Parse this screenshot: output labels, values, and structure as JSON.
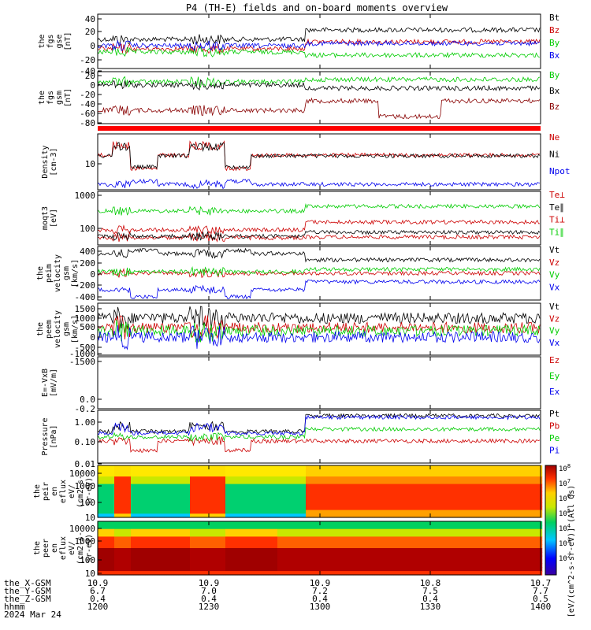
{
  "chart_data": {
    "type": "line",
    "title": "P4 (TH-E) fields and on-board moments overview",
    "panels": [
      {
        "id": "fgs_gse",
        "ylabel": [
          "the",
          "fgs",
          "gse",
          "[nT]"
        ],
        "yticks": [
          "40",
          "20",
          "0",
          "-20",
          "-40"
        ],
        "legend": [
          {
            "name": "Bt",
            "color": "#000000"
          },
          {
            "name": "Bz",
            "color": "#cc0000"
          },
          {
            "name": "By",
            "color": "#00cc00"
          },
          {
            "name": "Bx",
            "color": "#0000ee"
          }
        ]
      },
      {
        "id": "fgs_gsm",
        "ylabel": [
          "the",
          "fgs",
          "gsm",
          "[nT]"
        ],
        "yticks": [
          "20",
          "0",
          "-20",
          "-40",
          "-60",
          "-80"
        ],
        "legend": [
          {
            "name": "By",
            "color": "#00cc00"
          },
          {
            "name": "Bx",
            "color": "#000000"
          },
          {
            "name": "Bz",
            "color": "#880000"
          }
        ]
      },
      {
        "id": "density",
        "ylabel": [
          "Density",
          "[cm-3]"
        ],
        "yticks": [
          "10"
        ],
        "legend": [
          {
            "name": "Ne",
            "color": "#cc0000"
          },
          {
            "name": "Ni",
            "color": "#000000"
          },
          {
            "name": "Npot",
            "color": "#0000ee"
          }
        ]
      },
      {
        "id": "temp",
        "ylabel": [
          "moqt3",
          "[eV]"
        ],
        "yticks": [
          "1000",
          "100"
        ],
        "legend": [
          {
            "name": "Te⊥",
            "color": "#cc0000"
          },
          {
            "name": "Te∥",
            "color": "#000000"
          },
          {
            "name": "Ti⊥",
            "color": "#cc0000"
          },
          {
            "name": "Ti∥",
            "color": "#00cc00"
          }
        ]
      },
      {
        "id": "peim_v",
        "ylabel": [
          "the",
          "peim",
          "velocity",
          "gsm",
          "[km/s]"
        ],
        "yticks": [
          "400",
          "200",
          "0",
          "-200",
          "-400"
        ],
        "legend": [
          {
            "name": "Vt",
            "color": "#000000"
          },
          {
            "name": "Vz",
            "color": "#cc0000"
          },
          {
            "name": "Vy",
            "color": "#00cc00"
          },
          {
            "name": "Vx",
            "color": "#0000ee"
          }
        ]
      },
      {
        "id": "peem_v",
        "ylabel": [
          "the",
          "peem",
          "velocity",
          "gsm",
          "[km/s]"
        ],
        "yticks": [
          "1500",
          "1000",
          "500",
          "0",
          "-500",
          "-1000",
          "-1500"
        ],
        "legend": [
          {
            "name": "Vt",
            "color": "#000000"
          },
          {
            "name": "Vz",
            "color": "#cc0000"
          },
          {
            "name": "Vy",
            "color": "#00cc00"
          },
          {
            "name": "Vx",
            "color": "#0000ee"
          }
        ]
      },
      {
        "id": "efield",
        "ylabel": [
          "E=-VxB",
          "[mV/m]"
        ],
        "yticks": [
          "0.0",
          "-0.2"
        ],
        "legend": [
          {
            "name": "Ez",
            "color": "#cc0000"
          },
          {
            "name": "Ey",
            "color": "#00cc00"
          },
          {
            "name": "Ex",
            "color": "#0000ee"
          }
        ]
      },
      {
        "id": "pressure",
        "ylabel": [
          "Pressure",
          "[nPa]"
        ],
        "yticks": [
          "1.00",
          "0.10",
          "0.01"
        ],
        "legend": [
          {
            "name": "Pt",
            "color": "#000000"
          },
          {
            "name": "Pb",
            "color": "#cc0000"
          },
          {
            "name": "Pe",
            "color": "#00cc00"
          },
          {
            "name": "Pi",
            "color": "#0000ee"
          }
        ]
      },
      {
        "id": "peir_spec",
        "ylabel": [
          "the",
          "peir",
          "en",
          "eflux",
          "eV/",
          "(cm2-s-",
          "sr-eV)"
        ],
        "yticks": [
          "10000",
          "1000",
          "100",
          "10"
        ]
      },
      {
        "id": "peer_spec",
        "ylabel": [
          "the",
          "peer",
          "en",
          "eflux",
          "eV/",
          "(cm2-s-",
          "sr-eV)"
        ],
        "yticks": [
          "10000",
          "1000",
          "100",
          "10"
        ]
      }
    ],
    "colorbar": {
      "label": "[eV/(cm^2-s-sr-eV)] (All Qs)",
      "ticks": [
        "10^8",
        "10^7",
        "10^6",
        "10^5",
        "10^4",
        "10^3",
        "10^2"
      ]
    },
    "xaxis": {
      "row_labels": [
        "the_X-GSM",
        "the_Y-GSM",
        "the_Z-GSM",
        "hhmm",
        "2024 Mar 24"
      ],
      "columns": [
        [
          "10.9",
          "6.7",
          "0.4",
          "1200"
        ],
        [
          "10.9",
          "7.0",
          "0.4",
          "1230"
        ],
        [
          "10.9",
          "7.2",
          "0.4",
          "1300"
        ],
        [
          "10.8",
          "7.5",
          "0.4",
          "1330"
        ],
        [
          "10.7",
          "7.7",
          "0.5",
          "1400"
        ]
      ]
    }
  }
}
